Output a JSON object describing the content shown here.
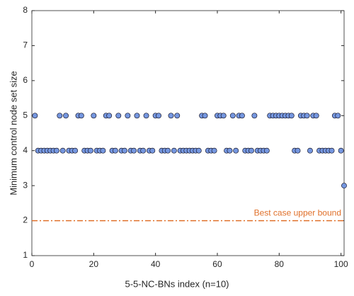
{
  "chart_data": {
    "type": "scatter",
    "xlabel": "5-5-NC-BNs index (n=10)",
    "ylabel": "Minimum control node set size",
    "x": [
      1,
      2,
      3,
      4,
      5,
      6,
      7,
      8,
      9,
      10,
      11,
      12,
      13,
      14,
      15,
      16,
      17,
      18,
      19,
      20,
      21,
      22,
      23,
      24,
      25,
      26,
      27,
      28,
      29,
      30,
      31,
      32,
      33,
      34,
      35,
      36,
      37,
      38,
      39,
      40,
      41,
      42,
      43,
      44,
      45,
      46,
      47,
      48,
      49,
      50,
      51,
      52,
      53,
      54,
      55,
      56,
      57,
      58,
      59,
      60,
      61,
      62,
      63,
      64,
      65,
      66,
      67,
      68,
      69,
      70,
      71,
      72,
      73,
      74,
      75,
      76,
      77,
      78,
      79,
      80,
      81,
      82,
      83,
      84,
      85,
      86,
      87,
      88,
      89,
      90,
      91,
      92,
      93,
      94,
      95,
      96,
      97,
      98,
      99,
      100,
      101
    ],
    "values": [
      5,
      4,
      4,
      4,
      4,
      4,
      4,
      4,
      5,
      4,
      5,
      4,
      4,
      4,
      5,
      5,
      4,
      4,
      4,
      5,
      4,
      4,
      4,
      5,
      5,
      4,
      4,
      5,
      4,
      4,
      5,
      4,
      4,
      5,
      4,
      4,
      5,
      4,
      4,
      5,
      5,
      4,
      4,
      4,
      5,
      4,
      5,
      4,
      4,
      4,
      4,
      4,
      4,
      4,
      5,
      5,
      4,
      4,
      4,
      5,
      5,
      5,
      4,
      4,
      5,
      4,
      5,
      5,
      4,
      4,
      4,
      5,
      4,
      4,
      4,
      4,
      5,
      5,
      5,
      5,
      5,
      5,
      5,
      5,
      4,
      4,
      5,
      5,
      5,
      4,
      5,
      5,
      4,
      4,
      4,
      4,
      4,
      5,
      5,
      4,
      3
    ],
    "color": "#7597e0",
    "edgecolor": "#1a1a2e",
    "xlim": [
      0,
      101
    ],
    "xticks": [
      0,
      20,
      40,
      60,
      80,
      100
    ],
    "ylim": [
      1,
      8
    ],
    "yticks": [
      1,
      2,
      3,
      4,
      5,
      6,
      7,
      8
    ],
    "reference_line": {
      "label": "Best case upper bound",
      "y": 2,
      "color": "#e0702a"
    }
  }
}
